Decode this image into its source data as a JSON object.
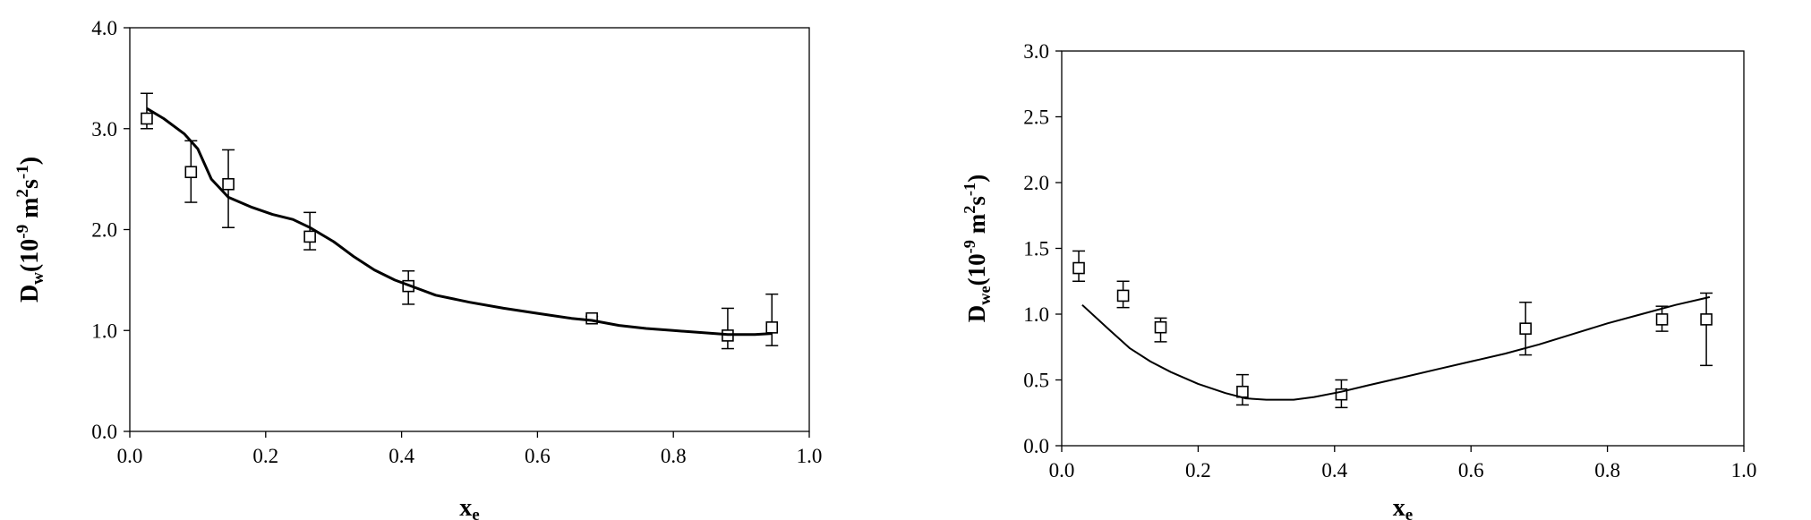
{
  "chart_data": [
    {
      "type": "scatter",
      "xlabel": "x",
      "xlabel_sub": "e",
      "ylabel": {
        "main": "D",
        "sub": "w",
        "rest": "(10",
        "exp1": "-9",
        "mid": " m",
        "exp2": "2",
        "mid2": "s",
        "exp3": "-1",
        "close": ")"
      },
      "xlim": [
        0,
        1.0
      ],
      "ylim": [
        0,
        4.0
      ],
      "xticks": [
        "0.0",
        "0.2",
        "0.4",
        "0.6",
        "0.8",
        "1.0"
      ],
      "yticks": [
        "0.0",
        "1.0",
        "2.0",
        "3.0",
        "4.0"
      ],
      "series": [
        {
          "kind": "points",
          "marker": "square",
          "x": [
            0.025,
            0.09,
            0.145,
            0.265,
            0.41,
            0.68,
            0.88,
            0.945
          ],
          "y": [
            3.1,
            2.57,
            2.45,
            1.93,
            1.44,
            1.12,
            0.95,
            1.03
          ],
          "err_low": [
            0.1,
            0.3,
            0.43,
            0.13,
            0.18,
            0.02,
            0.13,
            0.18
          ],
          "err_high": [
            0.25,
            0.31,
            0.34,
            0.24,
            0.15,
            0.02,
            0.27,
            0.33
          ]
        },
        {
          "kind": "line",
          "stroke_width": 3,
          "x": [
            0.025,
            0.05,
            0.08,
            0.1,
            0.12,
            0.145,
            0.18,
            0.21,
            0.24,
            0.265,
            0.3,
            0.33,
            0.36,
            0.39,
            0.41,
            0.45,
            0.5,
            0.55,
            0.6,
            0.65,
            0.68,
            0.72,
            0.76,
            0.8,
            0.84,
            0.88,
            0.92,
            0.945
          ],
          "y": [
            3.2,
            3.1,
            2.95,
            2.8,
            2.5,
            2.32,
            2.22,
            2.15,
            2.1,
            2.02,
            1.88,
            1.73,
            1.6,
            1.5,
            1.45,
            1.35,
            1.28,
            1.22,
            1.17,
            1.12,
            1.1,
            1.05,
            1.02,
            1.0,
            0.98,
            0.96,
            0.96,
            0.97
          ]
        }
      ]
    },
    {
      "type": "scatter",
      "xlabel": "x",
      "xlabel_sub": "e",
      "ylabel": {
        "main": "D",
        "sub": "we",
        "rest": "(10",
        "exp1": "-9",
        "mid": " m",
        "exp2": "2",
        "mid2": "s",
        "exp3": "-1",
        "close": ")"
      },
      "xlim": [
        0,
        1.0
      ],
      "ylim": [
        0,
        3.0
      ],
      "xticks": [
        "0.0",
        "0.2",
        "0.4",
        "0.6",
        "0.8",
        "1.0"
      ],
      "yticks": [
        "0.0",
        "0.5",
        "1.0",
        "1.5",
        "2.0",
        "2.5",
        "3.0"
      ],
      "series": [
        {
          "kind": "points",
          "marker": "square",
          "x": [
            0.025,
            0.09,
            0.145,
            0.265,
            0.41,
            0.68,
            0.88,
            0.945
          ],
          "y": [
            1.35,
            1.14,
            0.9,
            0.41,
            0.39,
            0.89,
            0.96,
            0.96
          ],
          "err_low": [
            0.1,
            0.09,
            0.11,
            0.1,
            0.1,
            0.2,
            0.09,
            0.35
          ],
          "err_high": [
            0.13,
            0.11,
            0.07,
            0.13,
            0.11,
            0.2,
            0.1,
            0.2
          ]
        },
        {
          "kind": "line",
          "stroke_width": 2,
          "x": [
            0.03,
            0.07,
            0.1,
            0.13,
            0.16,
            0.2,
            0.24,
            0.27,
            0.3,
            0.34,
            0.37,
            0.41,
            0.45,
            0.5,
            0.55,
            0.6,
            0.65,
            0.7,
            0.75,
            0.8,
            0.85,
            0.9,
            0.95
          ],
          "y": [
            1.07,
            0.88,
            0.74,
            0.64,
            0.56,
            0.47,
            0.4,
            0.36,
            0.35,
            0.35,
            0.37,
            0.41,
            0.46,
            0.52,
            0.58,
            0.64,
            0.7,
            0.77,
            0.85,
            0.93,
            1.0,
            1.07,
            1.13
          ]
        }
      ]
    }
  ]
}
